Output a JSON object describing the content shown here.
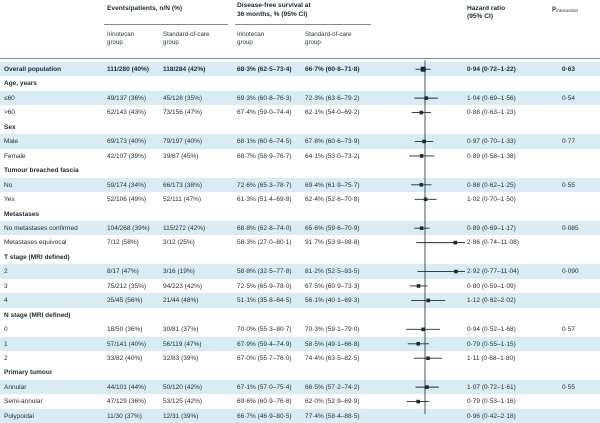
{
  "header": {
    "events_title": "Events/patients, n/N (%)",
    "dfs_title_line1": "Disease-free survival at",
    "dfs_title_line2": "36 months, % (95% CI)",
    "hr_title_line1": "Hazard ratio",
    "hr_title_line2": "(95% CI)",
    "p_title_main": "p",
    "p_title_sub": "interaction",
    "sub_irinotecan_1": "Irinotecan",
    "sub_irinotecan_2": "group",
    "sub_soc_1": "Standard-of-care",
    "sub_soc_2": "group",
    "sub_irinotecan_b1": "Irinotecan",
    "sub_irinotecan_b2": "group",
    "sub_soc_b1": "Standard-of-care",
    "sub_soc_b2": "group"
  },
  "rows": [
    {
      "kind": "overall",
      "label": "Overall population",
      "ev_i": "111/280 (40%)",
      "ev_s": "118/284 (42%)",
      "dfs_i": "68·3% (62·5–73·4)",
      "dfs_s": "66·7% (60·8–71·8)",
      "hr": "0·94 (0·72–1·22)",
      "p": "0·63",
      "est": 0.94,
      "lo": 0.72,
      "hi": 1.22
    },
    {
      "kind": "group",
      "label": "Age, years"
    },
    {
      "kind": "row",
      "label": "≤60",
      "ev_i": "49/137 (36%)",
      "ev_s": "45/128 (35%)",
      "dfs_i": "69·3% (60·8–76·3)",
      "dfs_s": "72·3% (63·6–79·2)",
      "hr": "1·04 (0·69–1·56)",
      "p": "0·54",
      "est": 1.04,
      "lo": 0.69,
      "hi": 1.56
    },
    {
      "kind": "row",
      "label": ">60",
      "ev_i": "62/143 (43%)",
      "ev_s": "73/156 (47%)",
      "dfs_i": "67·4% (59·0–74·4)",
      "dfs_s": "62·1% (54·0–69·2)",
      "hr": "0·88 (0·63–1·23)",
      "p": "",
      "est": 0.88,
      "lo": 0.63,
      "hi": 1.23
    },
    {
      "kind": "group",
      "label": "Sex"
    },
    {
      "kind": "row",
      "label": "Male",
      "ev_i": "69/173 (40%)",
      "ev_s": "79/197 (40%)",
      "dfs_i": "68·1% (60·6–74·5)",
      "dfs_s": "67·8% (60·6–73·9)",
      "hr": "0·97 (0·70–1·33)",
      "p": "0·77",
      "est": 0.97,
      "lo": 0.7,
      "hi": 1.33
    },
    {
      "kind": "row",
      "label": "Female",
      "ev_i": "42/107 (39%)",
      "ev_s": "39/87 (45%)",
      "dfs_i": "68·7% (58·9–76·7)",
      "dfs_s": "64·1% (53·0–73·2)",
      "hr": "0·89 (0·58–1·38)",
      "p": "",
      "est": 0.89,
      "lo": 0.58,
      "hi": 1.38
    },
    {
      "kind": "group",
      "label": "Tumour breached fascia"
    },
    {
      "kind": "row",
      "label": "No",
      "ev_i": "59/174 (34%)",
      "ev_s": "66/173 (38%)",
      "dfs_i": "72·6% (65·3–78·7)",
      "dfs_s": "69·4% (61·9–75·7)",
      "hr": "0·88 (0·62–1·25)",
      "p": "0·55",
      "est": 0.88,
      "lo": 0.62,
      "hi": 1.25
    },
    {
      "kind": "row",
      "label": "Yes",
      "ev_i": "52/106 (49%)",
      "ev_s": "52/111 (47%)",
      "dfs_i": "61·3% (51·4–69·8)",
      "dfs_s": "62·4% (52·6–70·8)",
      "hr": "1·02 (0·70–1·50)",
      "p": "",
      "est": 1.02,
      "lo": 0.7,
      "hi": 1.5
    },
    {
      "kind": "group",
      "label": "Metastases"
    },
    {
      "kind": "row",
      "label": "No metastases confirmed",
      "ev_i": "104/268 (39%)",
      "ev_s": "115/272 (42%)",
      "dfs_i": "68·8% (62·8–74·0)",
      "dfs_s": "65·6% (59·6–70·9)",
      "hr": "0·89 (0·69–1·17)",
      "p": "0·085",
      "est": 0.89,
      "lo": 0.69,
      "hi": 1.17
    },
    {
      "kind": "row",
      "label": "Metastases equivocal",
      "ev_i": "7/12 (58%)",
      "ev_s": "3/12 (25%)",
      "dfs_i": "58·3% (27·0–80·1)",
      "dfs_s": "91·7% (53·9–98·8)",
      "hr": "2·86 (0·74–11·08)",
      "p": "",
      "est": 2.86,
      "lo": 0.74,
      "hi": 11.08
    },
    {
      "kind": "group",
      "label": "T stage (MRI defined)"
    },
    {
      "kind": "row",
      "label": "2",
      "ev_i": "8/17 (47%)",
      "ev_s": "3/16 (19%)",
      "dfs_i": "58·8% (32·5–77·8)",
      "dfs_s": "81·2% (52·5–93·5)",
      "hr": "2·92 (0·77–11·04)",
      "p": "0·090",
      "est": 2.92,
      "lo": 0.77,
      "hi": 11.04
    },
    {
      "kind": "row",
      "label": "3",
      "ev_i": "75/212 (35%)",
      "ev_s": "94/223 (42%)",
      "dfs_i": "72·5% (65·9–78·0)",
      "dfs_s": "67·5% (60·9–73·3)",
      "hr": "0·80 (0·59–1·09)",
      "p": "",
      "est": 0.8,
      "lo": 0.59,
      "hi": 1.09
    },
    {
      "kind": "row",
      "label": "4",
      "ev_i": "25/45 (56%)",
      "ev_s": "21/44 (48%)",
      "dfs_i": "51·1% (35·8–64·5)",
      "dfs_s": "56·1% (40·1–69·3)",
      "hr": "1·12 (0·62–2·02)",
      "p": "",
      "est": 1.12,
      "lo": 0.62,
      "hi": 2.02
    },
    {
      "kind": "group",
      "label": "N stage (MRI defined)"
    },
    {
      "kind": "row",
      "label": "0",
      "ev_i": "18/50 (36%)",
      "ev_s": "30/81 (37%)",
      "dfs_i": "70·0% (55·3–80·7)",
      "dfs_s": "70·3% (59·1–79·0)",
      "hr": "0·94 (0·52–1·68)",
      "p": "0·57",
      "est": 0.94,
      "lo": 0.52,
      "hi": 1.68
    },
    {
      "kind": "row",
      "label": "1",
      "ev_i": "57/141 (40%)",
      "ev_s": "56/119 (47%)",
      "dfs_i": "67·9% (59·4–74·9)",
      "dfs_s": "58·5% (49·1–66·8)",
      "hr": "0·79 (0·55–1·15)",
      "p": "",
      "est": 0.79,
      "lo": 0.55,
      "hi": 1.15
    },
    {
      "kind": "row",
      "label": "2",
      "ev_i": "33/82 (40%)",
      "ev_s": "32/83 (39%)",
      "dfs_i": "67·0% (55·7–76·0)",
      "dfs_s": "74·4% (63·5–82·5)",
      "hr": "1·11 (0·68–1·80)",
      "p": "",
      "est": 1.11,
      "lo": 0.68,
      "hi": 1.8
    },
    {
      "kind": "group",
      "label": "Primary tumour"
    },
    {
      "kind": "row",
      "label": "Annular",
      "ev_i": "44/101 (44%)",
      "ev_s": "50/120 (42%)",
      "dfs_i": "67·1% (57·0–75·4)",
      "dfs_s": "66·5% (57·2–74·2)",
      "hr": "1·07 (0·72–1·61)",
      "p": "0·55",
      "est": 1.07,
      "lo": 0.72,
      "hi": 1.61
    },
    {
      "kind": "row",
      "label": "Semi-annular",
      "ev_i": "47/129 (36%)",
      "ev_s": "53/125 (42%)",
      "dfs_i": "69·6% (60·9–76·8)",
      "dfs_s": "62·0% (52·9–69·9)",
      "hr": "0·79 (0·53–1·16)",
      "p": "",
      "est": 0.79,
      "lo": 0.53,
      "hi": 1.16
    },
    {
      "kind": "row",
      "label": "Polypoidal",
      "ev_i": "11/30 (37%)",
      "ev_s": "12/31 (39%)",
      "dfs_i": "66·7% (46·9–80·5)",
      "dfs_s": "77·4% (58·4–88·5)",
      "hr": "0·96 (0·42–2·18)",
      "p": "",
      "est": 0.96,
      "lo": 0.42,
      "hi": 2.18
    }
  ],
  "chart_data": {
    "type": "forest",
    "scale": "log",
    "reference_line": 1,
    "xlim": [
      0.25,
      4
    ]
  }
}
